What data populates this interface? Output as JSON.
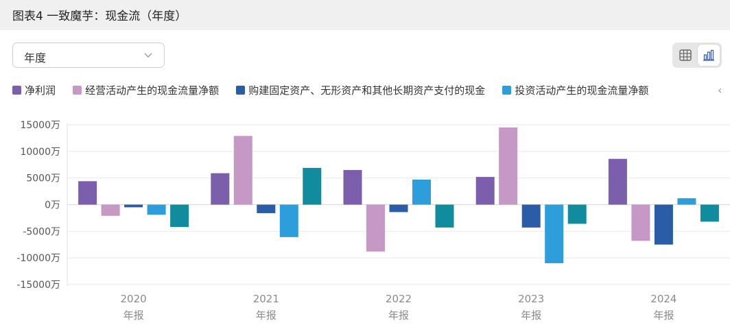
{
  "header": {
    "title": "图表4 一致魔芋：现金流（年度）"
  },
  "period_select": {
    "value": "年度",
    "icon": "chevron-down-icon"
  },
  "view_toggle": {
    "table_icon": "table-icon",
    "chart_icon": "bar-chart-icon",
    "active": "chart"
  },
  "legend_more_icon": "chevron-left-icon",
  "chart_data": {
    "type": "bar",
    "title": "图表4 一致魔芋：现金流（年度）",
    "categories": [
      "2020",
      "2021",
      "2022",
      "2023",
      "2024"
    ],
    "category_sublabel": "年报",
    "unit": "万",
    "ylim": [
      -15000,
      15000
    ],
    "yticks": [
      15000,
      10000,
      5000,
      0,
      -5000,
      -10000,
      -15000
    ],
    "ytick_labels": [
      "15000万",
      "10000万",
      "5000万",
      "0万",
      "-5000万",
      "-10000万",
      "-15000万"
    ],
    "grid": true,
    "legend_position": "top",
    "series": [
      {
        "name": "净利润",
        "color": "#7b5fad",
        "values": [
          4400,
          5900,
          6500,
          5200,
          8600
        ]
      },
      {
        "name": "经营活动产生的现金流量净额",
        "color": "#c698c6",
        "values": [
          -2100,
          12900,
          -8800,
          14500,
          -6800
        ]
      },
      {
        "name": "购建固定资产、无形资产和其他长期资产支付的现金",
        "color": "#2a5ca8",
        "values": [
          -500,
          -1600,
          -1400,
          -4300,
          -7500
        ]
      },
      {
        "name": "投资活动产生的现金流量净额",
        "color": "#2e9ddc",
        "values": [
          -1900,
          -6100,
          4700,
          -11000,
          1200
        ]
      },
      {
        "color": "#118c9e",
        "values": [
          -4200,
          6900,
          -4300,
          -3600,
          -3200
        ]
      }
    ]
  }
}
